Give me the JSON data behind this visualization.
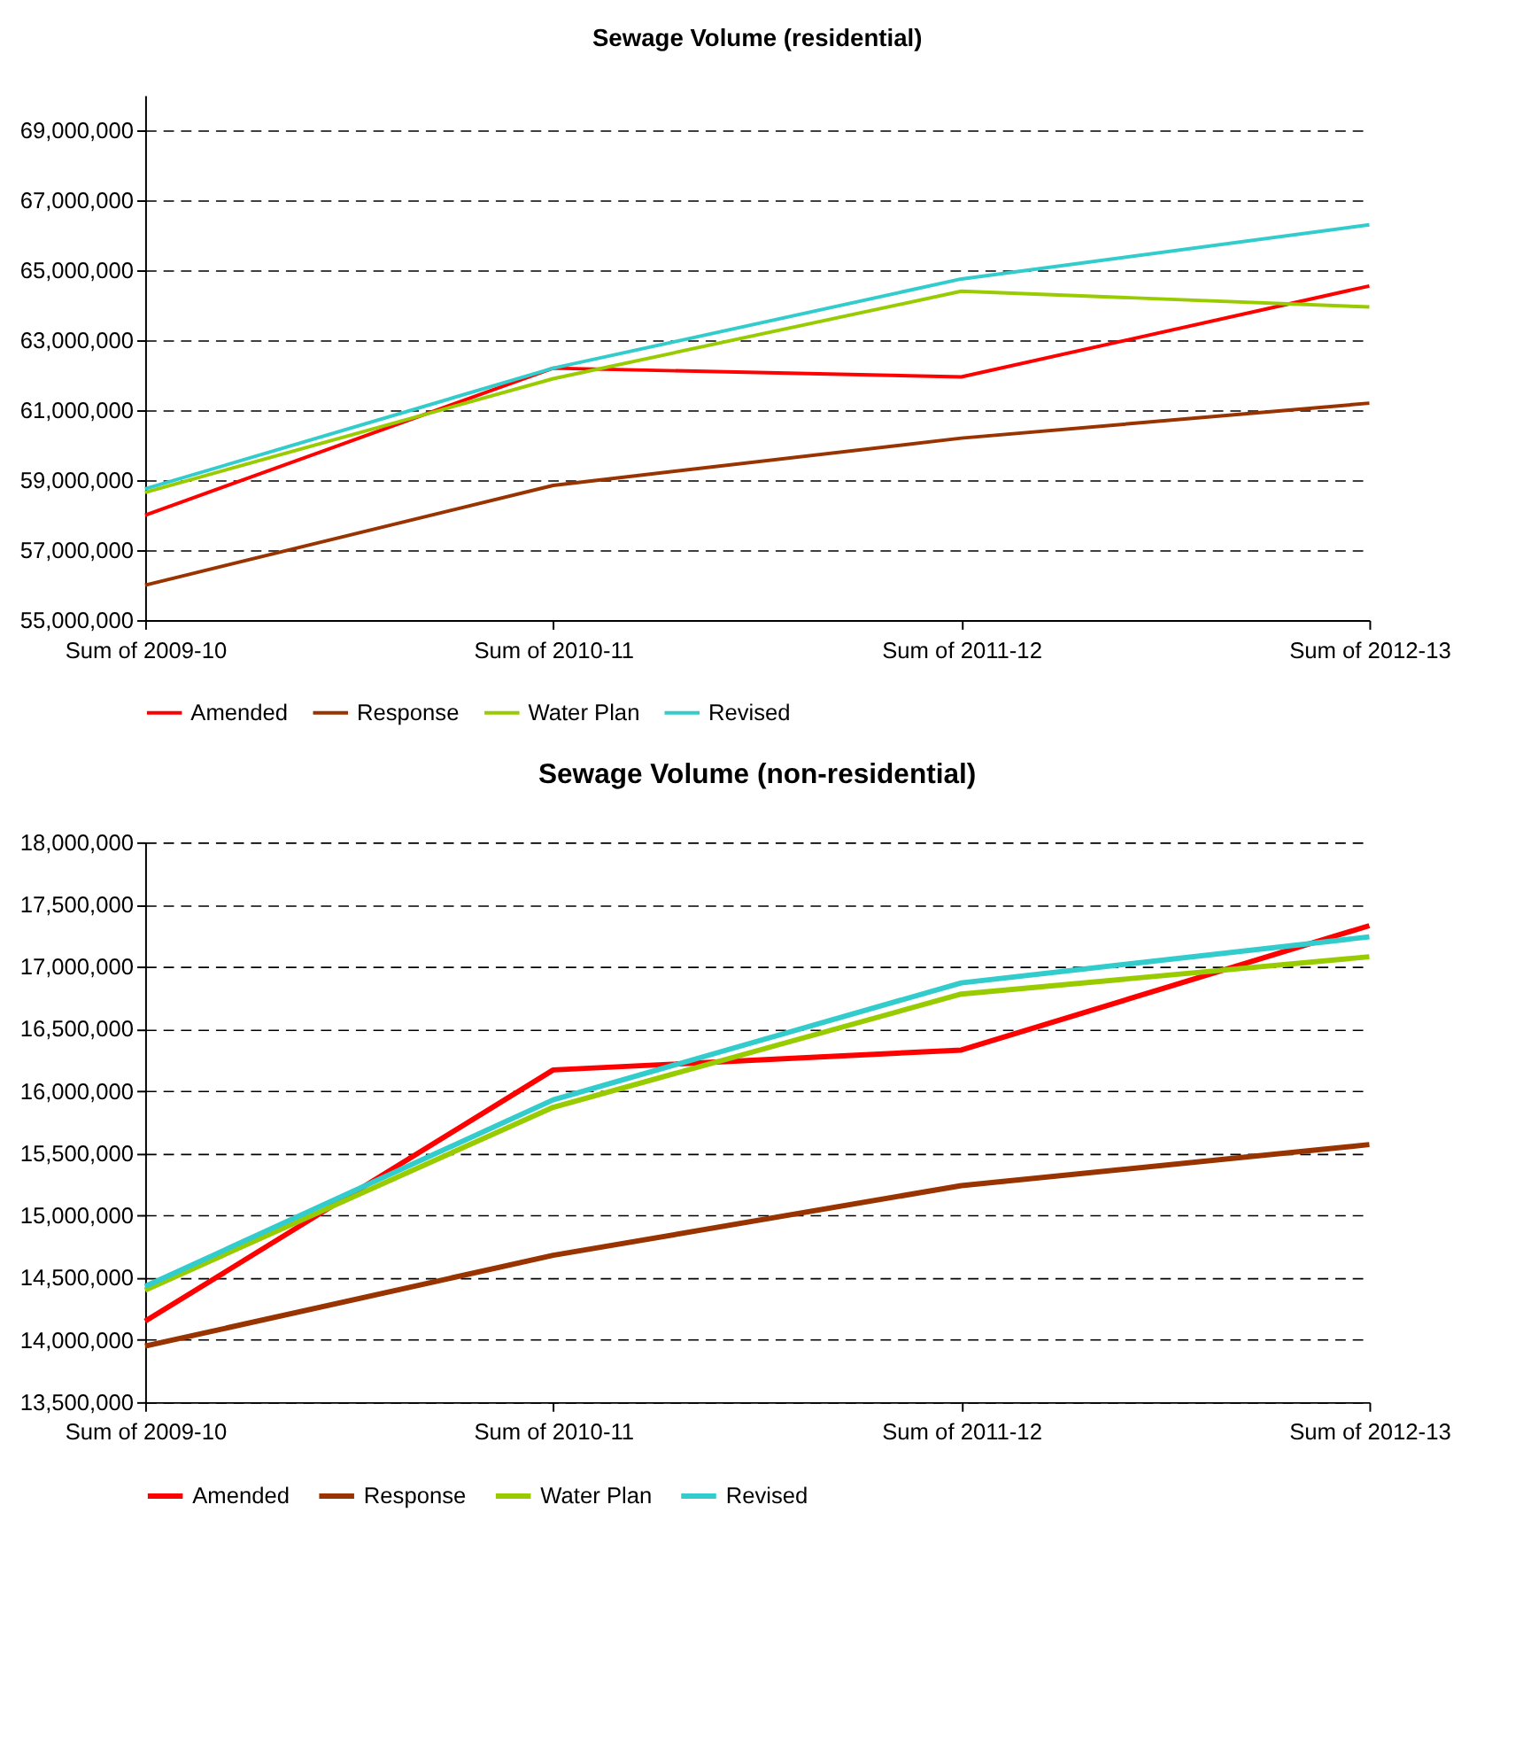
{
  "chart_data": [
    {
      "type": "line",
      "title": "Sewage Volume (residential)",
      "categories": [
        "Sum of 2009-10",
        "Sum of 2010-11",
        "Sum of 2011-12",
        "Sum of 2012-13"
      ],
      "series": [
        {
          "name": "Amended",
          "color": "#ff0000",
          "values": [
            58000000,
            62200000,
            61950000,
            64550000
          ]
        },
        {
          "name": "Response",
          "color": "#993300",
          "values": [
            56000000,
            58850000,
            60200000,
            61200000
          ]
        },
        {
          "name": "Water Plan",
          "color": "#99cc00",
          "values": [
            58650000,
            61900000,
            64400000,
            63950000
          ]
        },
        {
          "name": "Revised",
          "color": "#33cccc",
          "values": [
            58750000,
            62200000,
            64750000,
            66300000
          ]
        }
      ],
      "ylim": [
        55000000,
        70000000
      ],
      "yticks": [
        {
          "value": 55000000,
          "label": "55,000,000"
        },
        {
          "value": 57000000,
          "label": "57,000,000"
        },
        {
          "value": 59000000,
          "label": "59,000,000"
        },
        {
          "value": 61000000,
          "label": "61,000,000"
        },
        {
          "value": 63000000,
          "label": "63,000,000"
        },
        {
          "value": 65000000,
          "label": "65,000,000"
        },
        {
          "value": 67000000,
          "label": "67,000,000"
        },
        {
          "value": 69000000,
          "label": "69,000,000"
        }
      ],
      "grid": "y",
      "legend": "bottom",
      "line_style": "solid"
    },
    {
      "type": "line",
      "title": "Sewage Volume (non-residential)",
      "categories": [
        "Sum of 2009-10",
        "Sum of 2010-11",
        "Sum of 2011-12",
        "Sum of 2012-13"
      ],
      "series": [
        {
          "name": "Amended",
          "color": "#ff0000",
          "values": [
            14150000,
            16170000,
            16330000,
            17330000
          ]
        },
        {
          "name": "Response",
          "color": "#993300",
          "values": [
            13950000,
            14680000,
            15240000,
            15570000
          ]
        },
        {
          "name": "Water Plan",
          "color": "#99cc00",
          "values": [
            14400000,
            15870000,
            16780000,
            17080000
          ]
        },
        {
          "name": "Revised",
          "color": "#33cccc",
          "values": [
            14430000,
            15930000,
            16870000,
            17240000
          ]
        }
      ],
      "ylim": [
        13500000,
        18000000
      ],
      "yticks": [
        {
          "value": 13500000,
          "label": "13,500,000"
        },
        {
          "value": 14000000,
          "label": "14,000,000"
        },
        {
          "value": 14500000,
          "label": "14,500,000"
        },
        {
          "value": 15000000,
          "label": "15,000,000"
        },
        {
          "value": 15500000,
          "label": "15,500,000"
        },
        {
          "value": 16000000,
          "label": "16,000,000"
        },
        {
          "value": 16500000,
          "label": "16,500,000"
        },
        {
          "value": 17000000,
          "label": "17,000,000"
        },
        {
          "value": 17500000,
          "label": "17,500,000"
        },
        {
          "value": 18000000,
          "label": "18,000,000"
        }
      ],
      "grid": "y",
      "legend": "bottom",
      "line_style": "solid"
    }
  ]
}
